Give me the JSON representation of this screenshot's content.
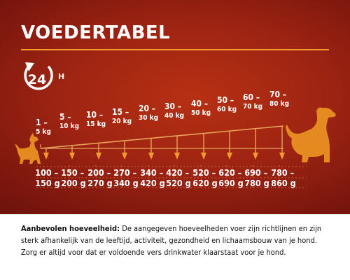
{
  "title": "VOEDERTABEL",
  "badge": {
    "number": "24",
    "suffix": "H"
  },
  "colors": {
    "background": "#9e2412",
    "accent": "#f29a2e",
    "dog": "#e48a20",
    "text": "#ffffff"
  },
  "icons": {
    "clock": "clock-arrow-icon",
    "small_dog": "small-dog-silhouette-icon",
    "large_dog": "large-dog-silhouette-icon"
  },
  "weight_ranges": [
    {
      "range": "1 –",
      "unit": "5 kg"
    },
    {
      "range": "5 –",
      "unit": "10 kg"
    },
    {
      "range": "10 –",
      "unit": "15 kg"
    },
    {
      "range": "15 –",
      "unit": "20 kg"
    },
    {
      "range": "20 –",
      "unit": "30 kg"
    },
    {
      "range": "30 –",
      "unit": "40 kg"
    },
    {
      "range": "40 –",
      "unit": "50 kg"
    },
    {
      "range": "50 –",
      "unit": "60 kg"
    },
    {
      "range": "60 –",
      "unit": "70 kg"
    },
    {
      "range": "70 –",
      "unit": "80 kg"
    }
  ],
  "portions": [
    {
      "range": "100 –",
      "unit": "150 g"
    },
    {
      "range": "150 –",
      "unit": "200 g"
    },
    {
      "range": "200 –",
      "unit": "270 g"
    },
    {
      "range": "270 –",
      "unit": "340 g"
    },
    {
      "range": "340 –",
      "unit": "420 g"
    },
    {
      "range": "420 –",
      "unit": "520 g"
    },
    {
      "range": "520 –",
      "unit": "620 g"
    },
    {
      "range": "620 –",
      "unit": "690 g"
    },
    {
      "range": "690 –",
      "unit": "780 g"
    },
    {
      "range": "780 –",
      "unit": "860 g"
    }
  ],
  "note": {
    "label": "Aanbevolen hoeveelheid:",
    "text": "De aangegeven hoeveelheden voer zijn richtlijnen en zijn sterk afhankelijk van de leeftijd, activiteit, gezondheid en lichaamsbouw van je hond. Zorg er altijd voor dat er voldoende vers drinkwater klaarstaat voor je hond."
  }
}
